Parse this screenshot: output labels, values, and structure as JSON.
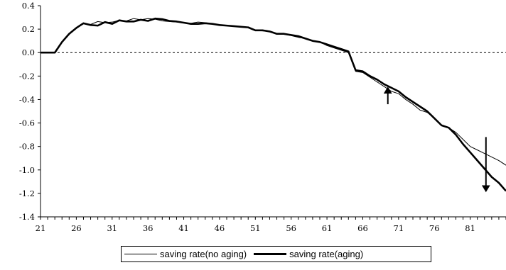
{
  "chart_data": {
    "type": "line",
    "title": "",
    "xlabel": "",
    "ylabel": "",
    "x_range": [
      21,
      86
    ],
    "ylim": [
      -1.4,
      0.4
    ],
    "x_tick_labels": [
      "21",
      "26",
      "31",
      "36",
      "41",
      "46",
      "51",
      "56",
      "61",
      "66",
      "71",
      "76",
      "81"
    ],
    "y_tick_labels": [
      "0.4",
      "0.2",
      "0.0",
      "-0.2",
      "-0.4",
      "-0.6",
      "-0.8",
      "-1.0",
      "-1.2",
      "-1.4"
    ],
    "x_ticks": [
      21,
      26,
      31,
      36,
      41,
      46,
      51,
      56,
      61,
      66,
      71,
      76,
      81
    ],
    "y_ticks": [
      0.4,
      0.2,
      0.0,
      -0.2,
      -0.4,
      -0.6,
      -0.8,
      -1.0,
      -1.2,
      -1.4
    ],
    "zero_line": "dashed",
    "grid": false,
    "legend_position": "bottom",
    "x": [
      21,
      22,
      23,
      24,
      25,
      26,
      27,
      28,
      29,
      30,
      31,
      32,
      33,
      34,
      35,
      36,
      37,
      38,
      39,
      40,
      41,
      42,
      43,
      44,
      45,
      46,
      47,
      48,
      49,
      50,
      51,
      52,
      53,
      54,
      55,
      56,
      57,
      58,
      59,
      60,
      61,
      62,
      63,
      64,
      65,
      66,
      67,
      68,
      69,
      70,
      71,
      72,
      73,
      74,
      75,
      76,
      77,
      78,
      79,
      80,
      81,
      82,
      83,
      84,
      85,
      86
    ],
    "series": [
      {
        "name": "saving rate(no aging)",
        "line_width": "thin",
        "values": [
          0.0,
          0.0,
          0.0,
          0.09,
          0.16,
          0.21,
          0.245,
          0.24,
          0.265,
          0.255,
          0.26,
          0.275,
          0.27,
          0.29,
          0.28,
          0.29,
          0.285,
          0.27,
          0.265,
          0.26,
          0.255,
          0.25,
          0.26,
          0.255,
          0.245,
          0.235,
          0.23,
          0.225,
          0.22,
          0.215,
          0.19,
          0.185,
          0.18,
          0.16,
          0.155,
          0.145,
          0.13,
          0.12,
          0.1,
          0.09,
          0.06,
          0.04,
          0.02,
          0.0,
          -0.16,
          -0.17,
          -0.21,
          -0.25,
          -0.29,
          -0.33,
          -0.35,
          -0.4,
          -0.44,
          -0.49,
          -0.51,
          -0.56,
          -0.62,
          -0.64,
          -0.68,
          -0.74,
          -0.8,
          -0.83,
          -0.86,
          -0.89,
          -0.92,
          -0.96
        ]
      },
      {
        "name": "saving rate(aging)",
        "line_width": "thick",
        "values": [
          0.0,
          0.0,
          0.0,
          0.09,
          0.16,
          0.21,
          0.25,
          0.235,
          0.23,
          0.26,
          0.245,
          0.275,
          0.265,
          0.265,
          0.28,
          0.27,
          0.29,
          0.285,
          0.27,
          0.265,
          0.255,
          0.245,
          0.245,
          0.25,
          0.245,
          0.235,
          0.23,
          0.225,
          0.22,
          0.215,
          0.19,
          0.19,
          0.18,
          0.16,
          0.16,
          0.15,
          0.14,
          0.12,
          0.1,
          0.09,
          0.07,
          0.05,
          0.03,
          0.01,
          -0.15,
          -0.16,
          -0.2,
          -0.23,
          -0.27,
          -0.3,
          -0.33,
          -0.38,
          -0.42,
          -0.46,
          -0.5,
          -0.56,
          -0.62,
          -0.64,
          -0.7,
          -0.78,
          -0.85,
          -0.92,
          -0.99,
          -1.06,
          -1.11,
          -1.18
        ]
      }
    ],
    "annotations": [
      {
        "type": "arrow",
        "direction": "up",
        "x": 69.5,
        "y_from": -0.44,
        "y_to": -0.32
      },
      {
        "type": "arrow",
        "direction": "down",
        "x": 83.2,
        "y_from": -0.72,
        "y_to": -1.16
      }
    ]
  }
}
